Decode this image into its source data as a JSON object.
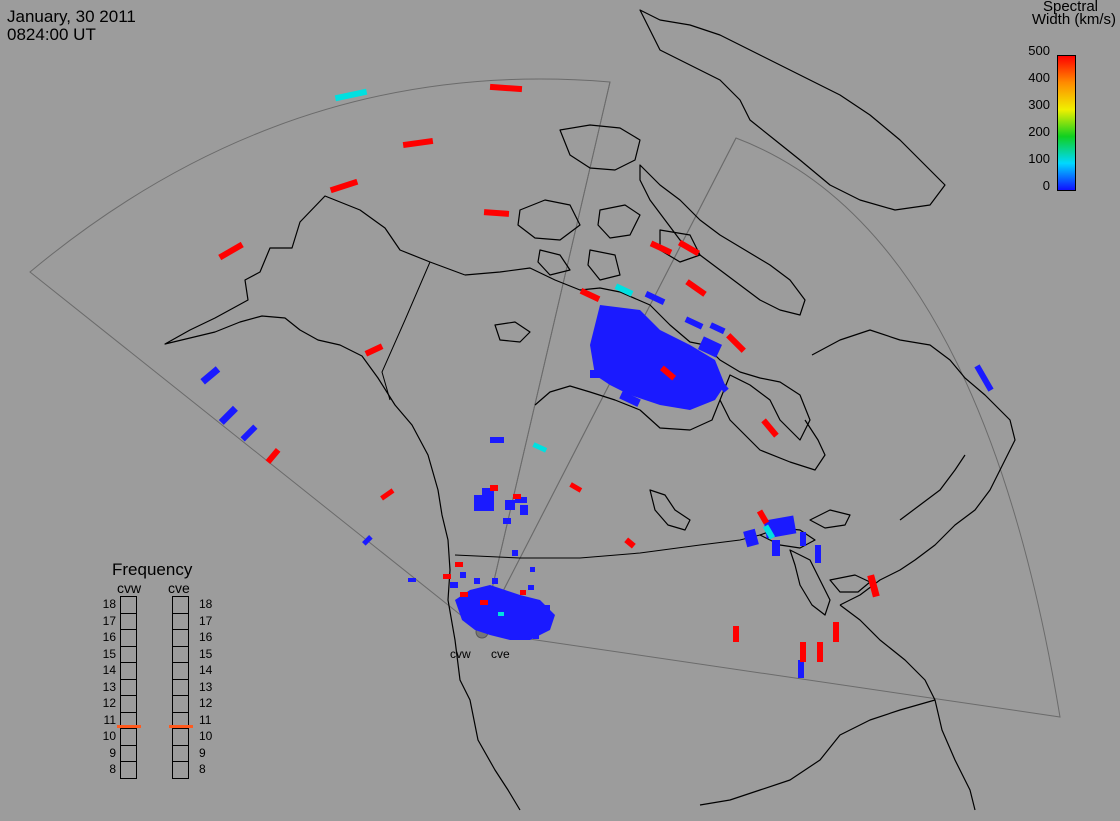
{
  "title": {
    "date": "January, 30 2011",
    "time": "0824:00 UT"
  },
  "colorbar": {
    "title_line1": "Spectral",
    "title_line2": "Width (km/s)",
    "ticks": [
      "500",
      "400",
      "300",
      "200",
      "100",
      "0"
    ],
    "colors": [
      "#1010ff",
      "#00d8ff",
      "#10d020",
      "#f0f000",
      "#ff8c00",
      "#ff0000"
    ]
  },
  "frequency": {
    "title": "Frequency",
    "radars": [
      "cvw",
      "cve"
    ],
    "levels": [
      "18",
      "17",
      "16",
      "15",
      "14",
      "13",
      "12",
      "11",
      "10",
      "9",
      "8"
    ],
    "selected": {
      "cvw": 10.6,
      "cve": 10.6
    }
  },
  "radar_labels": [
    "cvw",
    "cve"
  ],
  "map": {
    "background": "#9c9c9c",
    "coastline_color": "#000000",
    "fov_color": "#6b6b6b"
  }
}
